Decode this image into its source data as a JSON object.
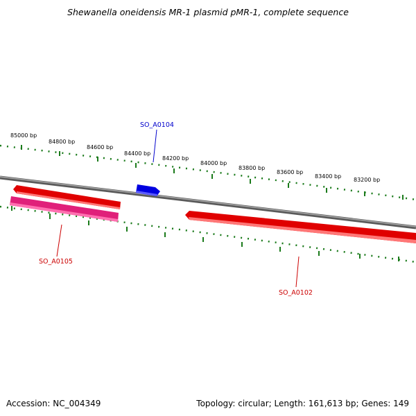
{
  "title": "Shewanella oneidensis MR-1 plasmid pMR-1, complete sequence",
  "accession": "Accession: NC_004349",
  "stats": "Topology: circular; Length: 161,613 bp; Genes: 149",
  "colors": {
    "backbone": "#808080",
    "ticks": "#1a7a1a",
    "gene_red": "#e00000",
    "gene_pink": "#e0207a",
    "gene_blue": "#0000e0",
    "label_red": "#cc0000",
    "label_blue": "#0000cc"
  },
  "tick_labels": [
    "85000 bp",
    "84800 bp",
    "84600 bp",
    "84400 bp",
    "84200 bp",
    "84000 bp",
    "83800 bp",
    "83600 bp",
    "83400 bp",
    "83200 bp"
  ],
  "genes": [
    {
      "name": "SO_A0104",
      "color": "#0000e0"
    },
    {
      "name": "SO_A0105",
      "color": "#cc0000"
    },
    {
      "name": "SO_A0102",
      "color": "#cc0000"
    }
  ]
}
